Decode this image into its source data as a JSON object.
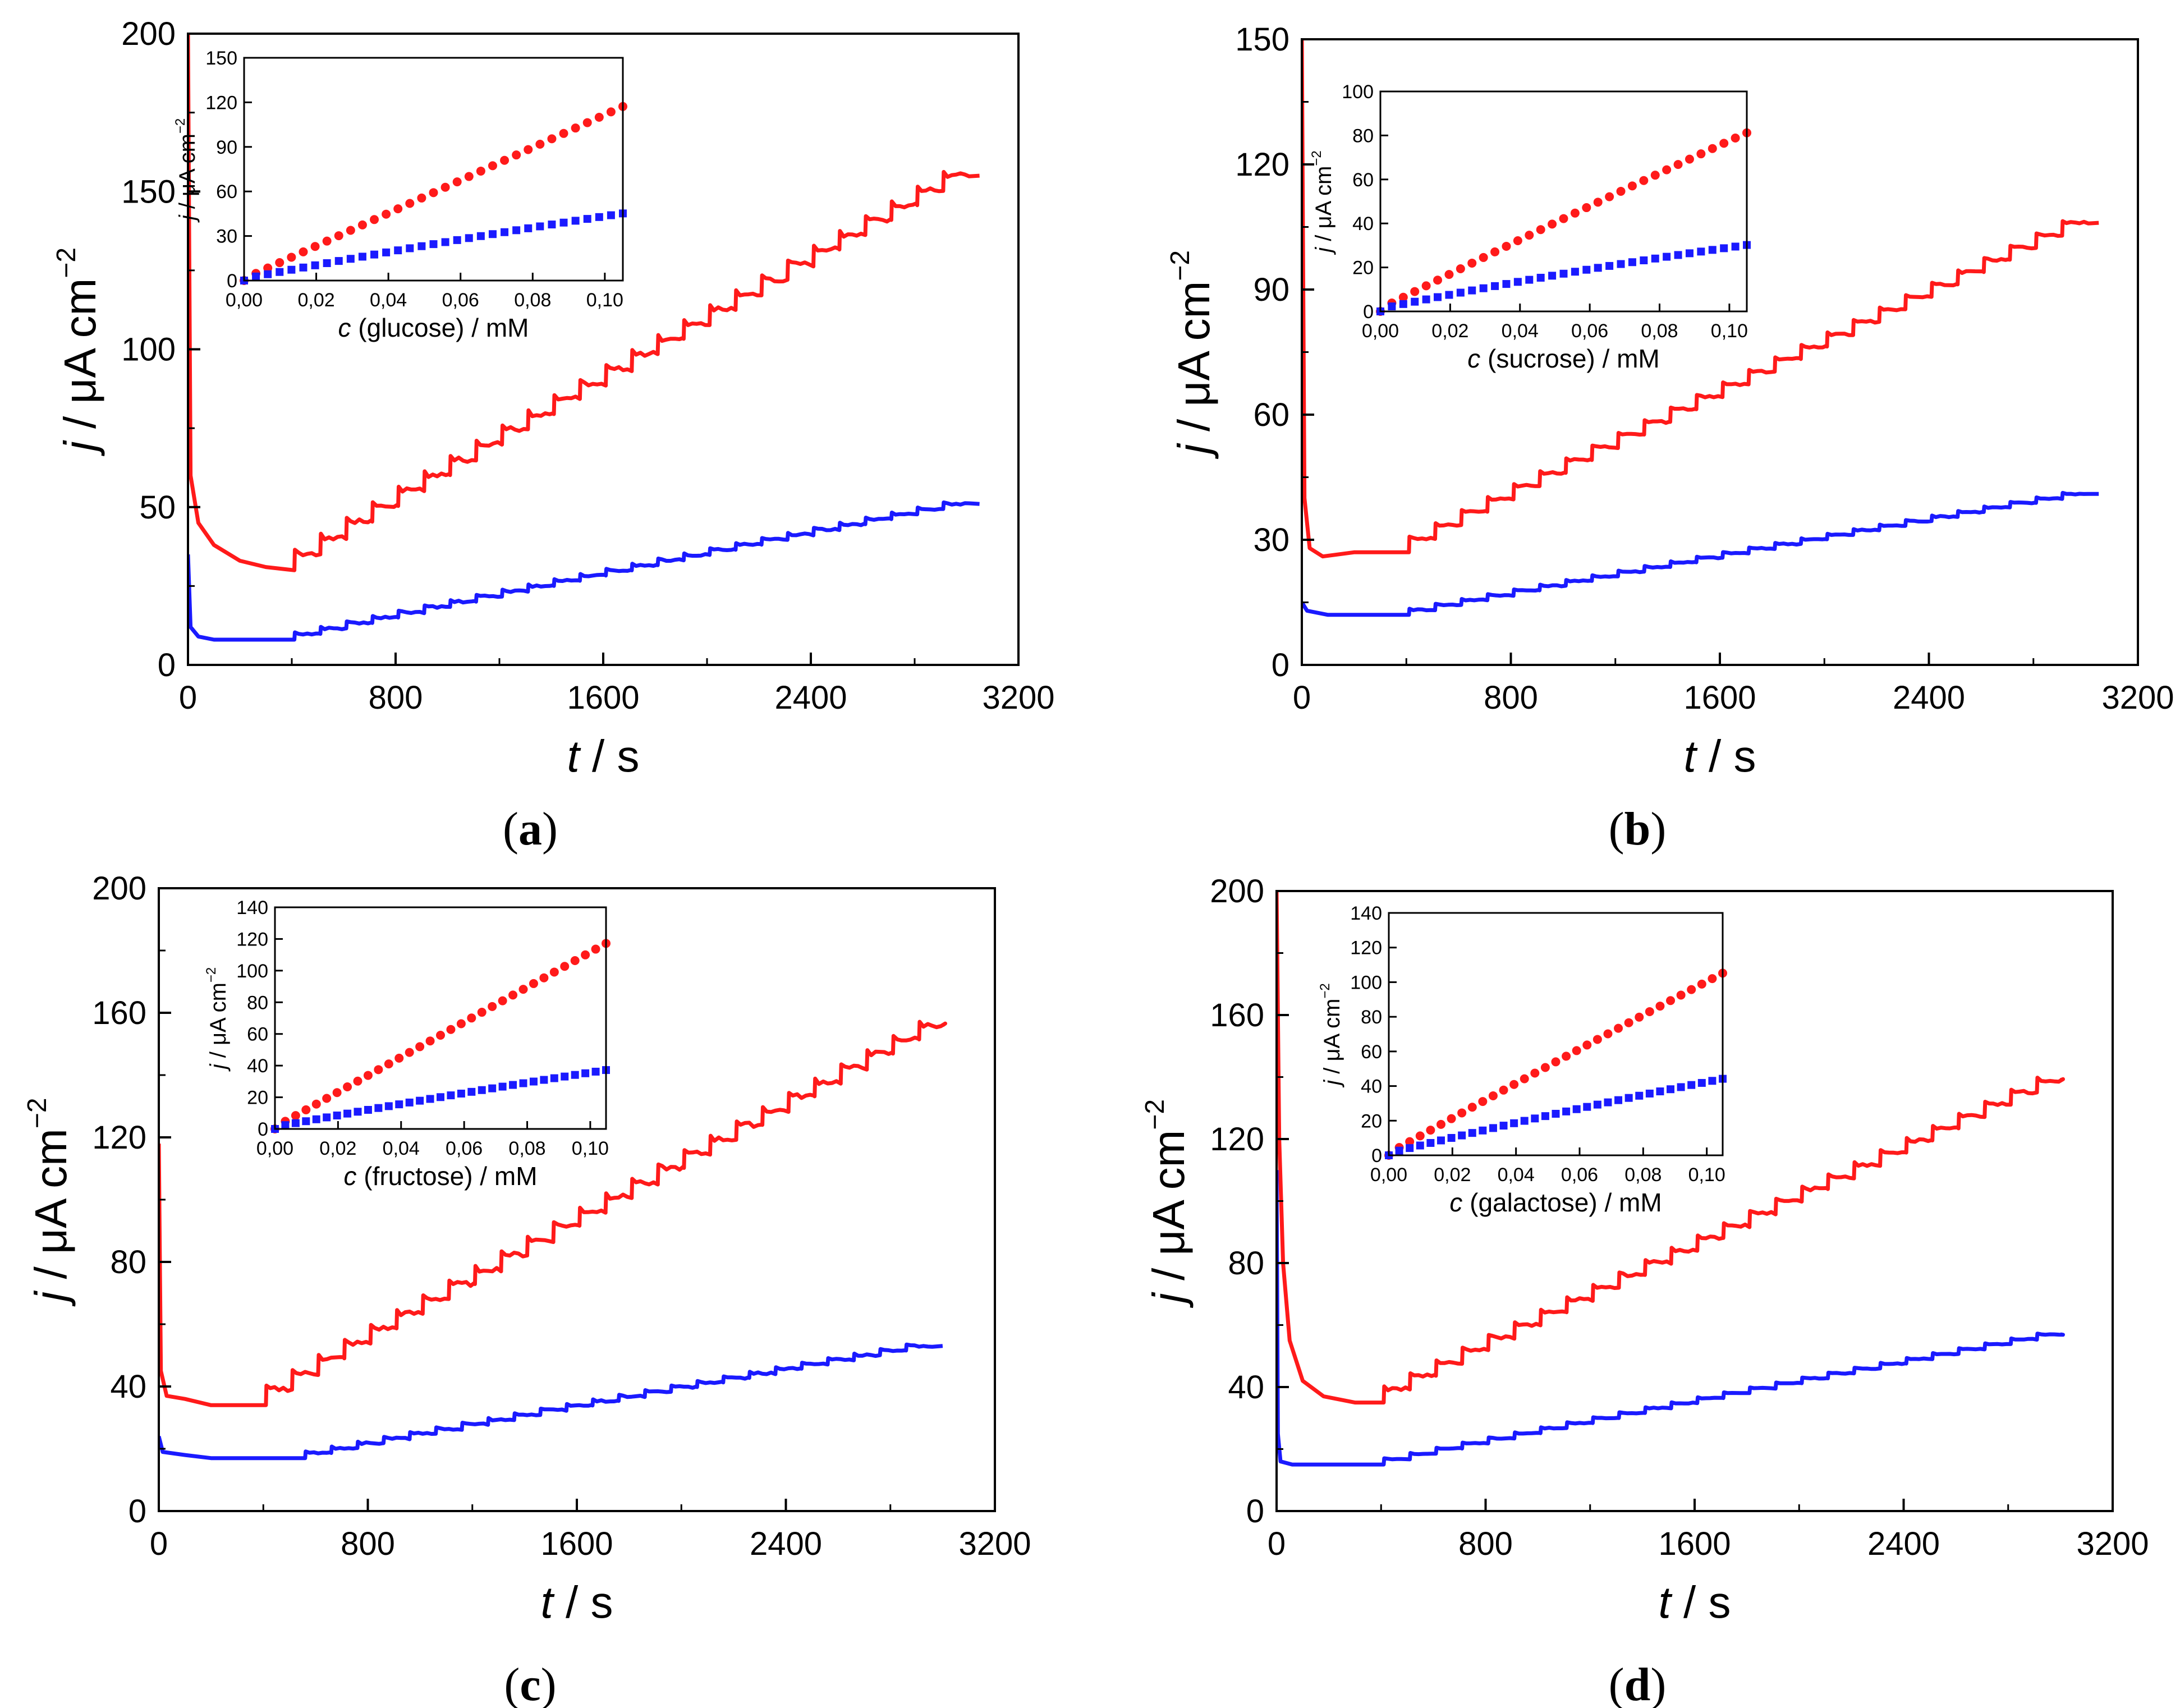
{
  "figure": {
    "colors": {
      "series_1": "#ff1a1a",
      "series_2": "#1a1aff",
      "axis": "#000000",
      "background": "#ffffff"
    }
  },
  "chart_data": [
    {
      "id": "a",
      "type": "line",
      "panel_label": "a",
      "xlabel": {
        "italic": "t",
        "rest": " / s"
      },
      "ylabel": {
        "italic": "j",
        "rest": " / μA cm",
        "sup": "−2"
      },
      "xlim": [
        0,
        3200
      ],
      "ylim": [
        0,
        200
      ],
      "xticks": [
        0,
        800,
        1600,
        2400,
        3200
      ],
      "xtick_labels": [
        "0",
        "800",
        "1600",
        "2400",
        "3200"
      ],
      "yticks": [
        0,
        50,
        100,
        150,
        200
      ],
      "ytick_labels": [
        "0",
        "50",
        "100",
        "150",
        "200"
      ],
      "series": [
        {
          "name": "series_1",
          "color": "#ff1a1a",
          "transient_peak": 200,
          "transient_points": [
            [
              0,
              200
            ],
            [
              10,
              60
            ],
            [
              40,
              45
            ],
            [
              100,
              38
            ],
            [
              200,
              33
            ],
            [
              300,
              31
            ],
            [
              410,
              30
            ]
          ],
          "step_start": 410,
          "step_period": 100,
          "step_end": 3050,
          "y_start_plateau": 30,
          "y_end": 155,
          "noise": 1.5
        },
        {
          "name": "series_2",
          "color": "#1a1aff",
          "transient_peak": 35,
          "transient_points": [
            [
              0,
              35
            ],
            [
              10,
              12
            ],
            [
              40,
              9
            ],
            [
              100,
              8
            ],
            [
              410,
              8
            ]
          ],
          "step_start": 410,
          "step_period": 100,
          "step_end": 3050,
          "y_start_plateau": 8,
          "y_end": 51,
          "noise": 0.6
        }
      ],
      "inset": {
        "type": "scatter",
        "xlabel": {
          "italic": "c",
          "rest": " (glucose) / mM"
        },
        "ylabel": {
          "italic": "j",
          "rest": " / μA cm",
          "sup": "−2"
        },
        "xlim": [
          0,
          0.105
        ],
        "ylim": [
          0,
          150
        ],
        "xticks": [
          0,
          0.02,
          0.04,
          0.06,
          0.08,
          0.1
        ],
        "xtick_labels": [
          "0,00",
          "0,02",
          "0,04",
          "0,06",
          "0,08",
          "0,10"
        ],
        "yticks": [
          0,
          30,
          60,
          90,
          120,
          150
        ],
        "ytick_labels": [
          "0",
          "30",
          "60",
          "90",
          "120",
          "150"
        ],
        "series": [
          {
            "name": "series_1",
            "color": "#ff1a1a",
            "marker": "circle",
            "x_max": 0.105,
            "y_max": 116,
            "curvature": 0
          },
          {
            "name": "series_2",
            "color": "#1a1aff",
            "marker": "square",
            "x_max": 0.105,
            "y_max": 44,
            "curvature": 0.12
          }
        ]
      }
    },
    {
      "id": "b",
      "type": "line",
      "panel_label": "b",
      "xlabel": {
        "italic": "t",
        "rest": " / s"
      },
      "ylabel": {
        "italic": "j",
        "rest": " / μA cm",
        "sup": "−2"
      },
      "xlim": [
        0,
        3200
      ],
      "ylim": [
        0,
        150
      ],
      "xticks": [
        0,
        800,
        1600,
        2400,
        3200
      ],
      "xtick_labels": [
        "0",
        "800",
        "1600",
        "2400",
        "3200"
      ],
      "yticks": [
        0,
        30,
        60,
        90,
        120,
        150
      ],
      "ytick_labels": [
        "0",
        "30",
        "60",
        "90",
        "120",
        "150"
      ],
      "series": [
        {
          "name": "series_1",
          "color": "#ff1a1a",
          "transient_peak": 150,
          "transient_points": [
            [
              0,
              150
            ],
            [
              10,
              40
            ],
            [
              30,
              28
            ],
            [
              80,
              26
            ],
            [
              200,
              27
            ],
            [
              410,
              27
            ]
          ],
          "step_start": 410,
          "step_period": 100,
          "step_end": 3050,
          "y_start_plateau": 27,
          "y_end": 106,
          "noise": 0.5
        },
        {
          "name": "series_2",
          "color": "#1a1aff",
          "transient_peak": 15,
          "transient_points": [
            [
              0,
              15
            ],
            [
              20,
              13
            ],
            [
              100,
              12
            ],
            [
              410,
              12
            ]
          ],
          "step_start": 410,
          "step_period": 100,
          "step_end": 3050,
          "y_start_plateau": 12,
          "y_end": 41,
          "noise": 0.3
        }
      ],
      "inset": {
        "type": "scatter",
        "xlabel": {
          "italic": "c",
          "rest": " (sucrose) / mM"
        },
        "ylabel": {
          "italic": "j",
          "rest": " / μA cm",
          "sup": "−2"
        },
        "xlim": [
          0,
          0.105
        ],
        "ylim": [
          0,
          100
        ],
        "xticks": [
          0,
          0.02,
          0.04,
          0.06,
          0.08,
          0.1
        ],
        "xtick_labels": [
          "0,00",
          "0,02",
          "0,04",
          "0,06",
          "0,08",
          "0,10"
        ],
        "yticks": [
          0,
          20,
          40,
          60,
          80,
          100
        ],
        "ytick_labels": [
          "0",
          "20",
          "40",
          "60",
          "80",
          "100"
        ],
        "series": [
          {
            "name": "series_1",
            "color": "#ff1a1a",
            "marker": "circle",
            "x_max": 0.105,
            "y_max": 80,
            "curvature": 0.05
          },
          {
            "name": "series_2",
            "color": "#1a1aff",
            "marker": "square",
            "x_max": 0.105,
            "y_max": 29,
            "curvature": 0.2
          }
        ]
      }
    },
    {
      "id": "c",
      "type": "line",
      "panel_label": "c",
      "xlabel": {
        "italic": "t",
        "rest": " / s"
      },
      "ylabel": {
        "italic": "j",
        "rest": " / μA cm",
        "sup": "−2"
      },
      "xlim": [
        0,
        3200
      ],
      "ylim": [
        0,
        200
      ],
      "xticks": [
        0,
        800,
        1600,
        2400,
        3200
      ],
      "xtick_labels": [
        "0",
        "800",
        "1600",
        "2400",
        "3200"
      ],
      "yticks": [
        0,
        40,
        80,
        120,
        160,
        200
      ],
      "ytick_labels": [
        "0",
        "40",
        "80",
        "120",
        "160",
        "200"
      ],
      "series": [
        {
          "name": "series_1",
          "color": "#ff1a1a",
          "transient_peak": 118,
          "transient_points": [
            [
              0,
              118
            ],
            [
              8,
              45
            ],
            [
              30,
              37
            ],
            [
              100,
              36
            ],
            [
              200,
              34
            ],
            [
              410,
              34
            ]
          ],
          "step_start": 410,
          "step_period": 100,
          "step_end": 3000,
          "y_start_plateau": 34,
          "y_end": 156,
          "noise": 1.4
        },
        {
          "name": "series_2",
          "color": "#1a1aff",
          "transient_peak": 24,
          "transient_points": [
            [
              0,
              24
            ],
            [
              15,
              19
            ],
            [
              100,
              18
            ],
            [
              200,
              17
            ],
            [
              560,
              17
            ]
          ],
          "step_start": 560,
          "step_period": 100,
          "step_end": 3000,
          "y_start_plateau": 17,
          "y_end": 53,
          "noise": 0.6
        }
      ],
      "inset": {
        "type": "scatter",
        "xlabel": {
          "italic": "c",
          "rest": " (fructose) / mM"
        },
        "ylabel": {
          "italic": "j",
          "rest": " / μA cm",
          "sup": "−2"
        },
        "xlim": [
          0,
          0.105
        ],
        "ylim": [
          0,
          140
        ],
        "xticks": [
          0,
          0.02,
          0.04,
          0.06,
          0.08,
          0.1
        ],
        "xtick_labels": [
          "0,00",
          "0,02",
          "0,04",
          "0,06",
          "0,08",
          "0,10"
        ],
        "yticks": [
          0,
          20,
          40,
          60,
          80,
          100,
          120,
          140
        ],
        "ytick_labels": [
          "0",
          "20",
          "40",
          "60",
          "80",
          "100",
          "120",
          "140"
        ],
        "series": [
          {
            "name": "series_1",
            "color": "#ff1a1a",
            "marker": "circle",
            "x_max": 0.105,
            "y_max": 116,
            "curvature": 0
          },
          {
            "name": "series_2",
            "color": "#1a1aff",
            "marker": "square",
            "x_max": 0.105,
            "y_max": 36,
            "curvature": 0.1
          }
        ]
      }
    },
    {
      "id": "d",
      "type": "line",
      "panel_label": "d",
      "xlabel": {
        "italic": "t",
        "rest": " / s"
      },
      "ylabel": {
        "italic": "j",
        "rest": " / μA cm",
        "sup": "−2"
      },
      "xlim": [
        0,
        3200
      ],
      "ylim": [
        0,
        200
      ],
      "xticks": [
        0,
        800,
        1600,
        2400,
        3200
      ],
      "xtick_labels": [
        "0",
        "800",
        "1600",
        "2400",
        "3200"
      ],
      "yticks": [
        0,
        40,
        80,
        120,
        160,
        200
      ],
      "ytick_labels": [
        "0",
        "40",
        "80",
        "120",
        "160",
        "200"
      ],
      "series": [
        {
          "name": "series_1",
          "color": "#ff1a1a",
          "transient_peak": 200,
          "transient_points": [
            [
              0,
              200
            ],
            [
              10,
              120
            ],
            [
              25,
              80
            ],
            [
              50,
              55
            ],
            [
              100,
              42
            ],
            [
              180,
              37
            ],
            [
              300,
              35
            ],
            [
              410,
              35
            ]
          ],
          "step_start": 410,
          "step_period": 100,
          "step_end": 3000,
          "y_start_plateau": 35,
          "y_end": 139,
          "noise": 1.0
        },
        {
          "name": "series_2",
          "color": "#1a1aff",
          "transient_peak": 110,
          "transient_points": [
            [
              0,
              110
            ],
            [
              5,
              25
            ],
            [
              15,
              16
            ],
            [
              60,
              15
            ],
            [
              410,
              15
            ]
          ],
          "step_start": 410,
          "step_period": 100,
          "step_end": 3000,
          "y_start_plateau": 15,
          "y_end": 57,
          "noise": 0.3
        }
      ],
      "inset": {
        "type": "scatter",
        "xlabel": {
          "italic": "c",
          "rest": " (galactose) / mM"
        },
        "ylabel": {
          "italic": "j",
          "rest": " / μA cm",
          "sup": "−2"
        },
        "xlim": [
          0,
          0.105
        ],
        "ylim": [
          0,
          140
        ],
        "xticks": [
          0,
          0.02,
          0.04,
          0.06,
          0.08,
          0.1
        ],
        "xtick_labels": [
          "0,00",
          "0,02",
          "0,04",
          "0,06",
          "0,08",
          "0,10"
        ],
        "yticks": [
          0,
          20,
          40,
          60,
          80,
          100,
          120,
          140
        ],
        "ytick_labels": [
          "0",
          "20",
          "40",
          "60",
          "80",
          "100",
          "120",
          "140"
        ],
        "series": [
          {
            "name": "series_1",
            "color": "#ff1a1a",
            "marker": "circle",
            "x_max": 0.105,
            "y_max": 104,
            "curvature": 0.03
          },
          {
            "name": "series_2",
            "color": "#1a1aff",
            "marker": "square",
            "x_max": 0.105,
            "y_max": 43,
            "curvature": 0.12
          }
        ]
      }
    }
  ]
}
